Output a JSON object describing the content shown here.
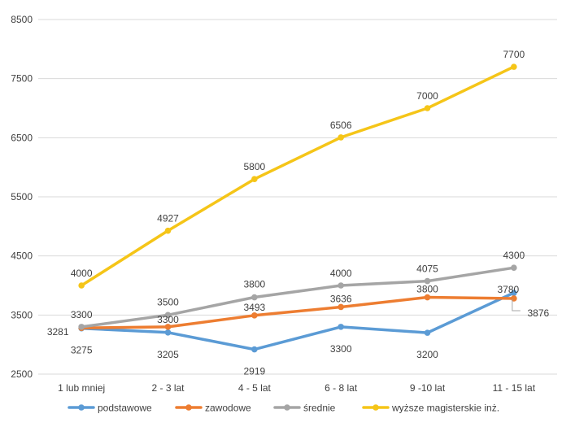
{
  "chart_data": {
    "type": "line",
    "title": "",
    "xlabel": "",
    "ylabel": "",
    "ylim": [
      2500,
      8500
    ],
    "yticks": [
      2500,
      3500,
      4500,
      5500,
      6500,
      7500,
      8500
    ],
    "categories": [
      "1 lub mniej",
      "2 - 3 lat",
      "4 - 5 lat",
      "6 - 8 lat",
      "9 -10 lat",
      "11 - 15 lat"
    ],
    "grid": true,
    "legend_position": "bottom",
    "series": [
      {
        "name": "podstawowe",
        "color": "#5B9BD5",
        "values": [
          3275,
          3205,
          2919,
          3300,
          3200,
          3876
        ]
      },
      {
        "name": "zawodowe",
        "color": "#ED7D31",
        "values": [
          3281,
          3300,
          3493,
          3636,
          3800,
          3780
        ]
      },
      {
        "name": "średnie",
        "color": "#A5A5A5",
        "values": [
          3300,
          3500,
          3800,
          4000,
          4075,
          4300
        ]
      },
      {
        "name": "wyższe magisterskie inż.",
        "color": "#F5C518",
        "values": [
          4000,
          4927,
          5800,
          6506,
          7000,
          7700
        ]
      }
    ]
  }
}
